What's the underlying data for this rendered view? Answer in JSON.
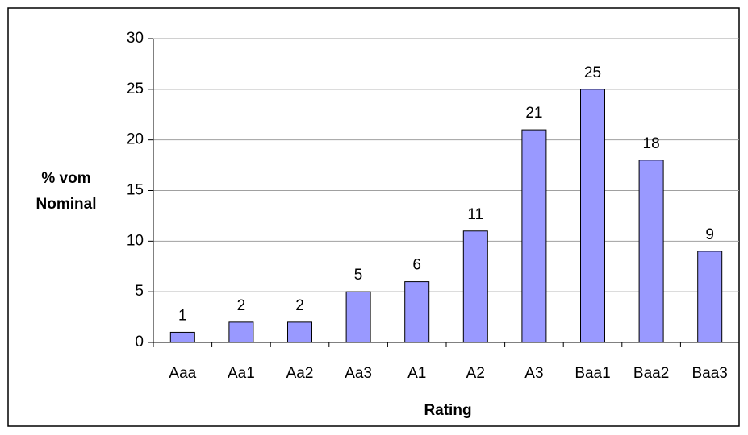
{
  "chart_data": {
    "type": "bar",
    "xlabel": "Rating",
    "ylabel": "% vom Nominal",
    "categories": [
      "Aaa",
      "Aa1",
      "Aa2",
      "Aa3",
      "A1",
      "A2",
      "A3",
      "Baa1",
      "Baa2",
      "Baa3"
    ],
    "values": [
      1,
      2,
      2,
      5,
      6,
      11,
      21,
      25,
      18,
      9
    ],
    "color": "#9999ff",
    "ylim": [
      0,
      30
    ],
    "yticks": [
      0,
      5,
      10,
      15,
      20,
      25,
      30
    ],
    "grid": true
  }
}
